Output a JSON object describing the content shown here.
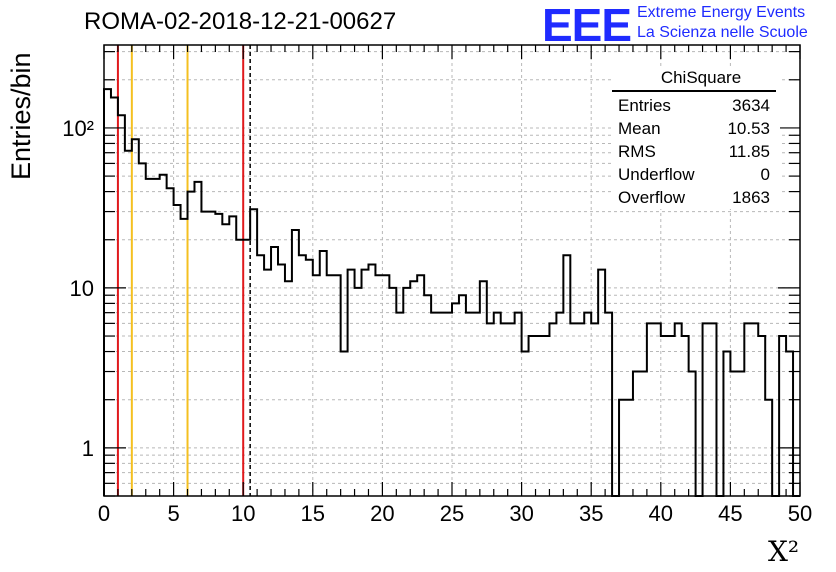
{
  "header": {
    "run_title": "ROMA-02-2018-12-21-00627",
    "logo": "EEE",
    "logo_line1": "Extreme Energy Events",
    "logo_line2": "La Scienza nelle Scuole"
  },
  "stats": {
    "title": "ChiSquare",
    "rows": [
      {
        "label": "Entries",
        "value": "3634"
      },
      {
        "label": "Mean",
        "value": "10.53"
      },
      {
        "label": "RMS",
        "value": "11.85"
      },
      {
        "label": "Underflow",
        "value": "0"
      },
      {
        "label": "Overflow",
        "value": "1863"
      }
    ]
  },
  "chart_data": {
    "type": "histogram",
    "title": "ROMA-02-2018-12-21-00627",
    "xlabel": "X²",
    "ylabel": "Entries/bin",
    "xlim": [
      0,
      50
    ],
    "ylim": [
      0.5,
      330
    ],
    "log_y": true,
    "grid": true,
    "bin_width": 0.5,
    "x_ticks": [
      "0",
      "5",
      "10",
      "15",
      "20",
      "25",
      "30",
      "35",
      "40",
      "45",
      "50"
    ],
    "y_ticks": [
      {
        "value": 1,
        "label": "1"
      },
      {
        "value": 10,
        "label": "10"
      },
      {
        "value": 100,
        "label": "10²"
      }
    ],
    "values": [
      175,
      155,
      120,
      72,
      85,
      60,
      48,
      48,
      51,
      42,
      33,
      27,
      40,
      46,
      30,
      30,
      29,
      25,
      28,
      20,
      20,
      31,
      16,
      13,
      18,
      14,
      11,
      23,
      16,
      15,
      12,
      17,
      12,
      12,
      4,
      13,
      10,
      13,
      14,
      12,
      12,
      10,
      7,
      10,
      11,
      12,
      9,
      7,
      7,
      7,
      8,
      9,
      7,
      7,
      11,
      6,
      7,
      6,
      6,
      7,
      4,
      5,
      5,
      5,
      6,
      7,
      16,
      6,
      6,
      7,
      6,
      13,
      7,
      0,
      2,
      2,
      3,
      3,
      6,
      6,
      5,
      5,
      6,
      5,
      3,
      0,
      6,
      6,
      0,
      4,
      3,
      3,
      6,
      6,
      5,
      2,
      0,
      5,
      4,
      0
    ],
    "vertical_lines": [
      {
        "x": 1,
        "color": "#e0191c",
        "style": "solid"
      },
      {
        "x": 2,
        "color": "#f4c020",
        "style": "solid"
      },
      {
        "x": 6,
        "color": "#f4c020",
        "style": "solid"
      },
      {
        "x": 10,
        "color": "#e0191c",
        "style": "solid"
      },
      {
        "x": 10.5,
        "color": "#000000",
        "style": "dashed"
      }
    ]
  }
}
